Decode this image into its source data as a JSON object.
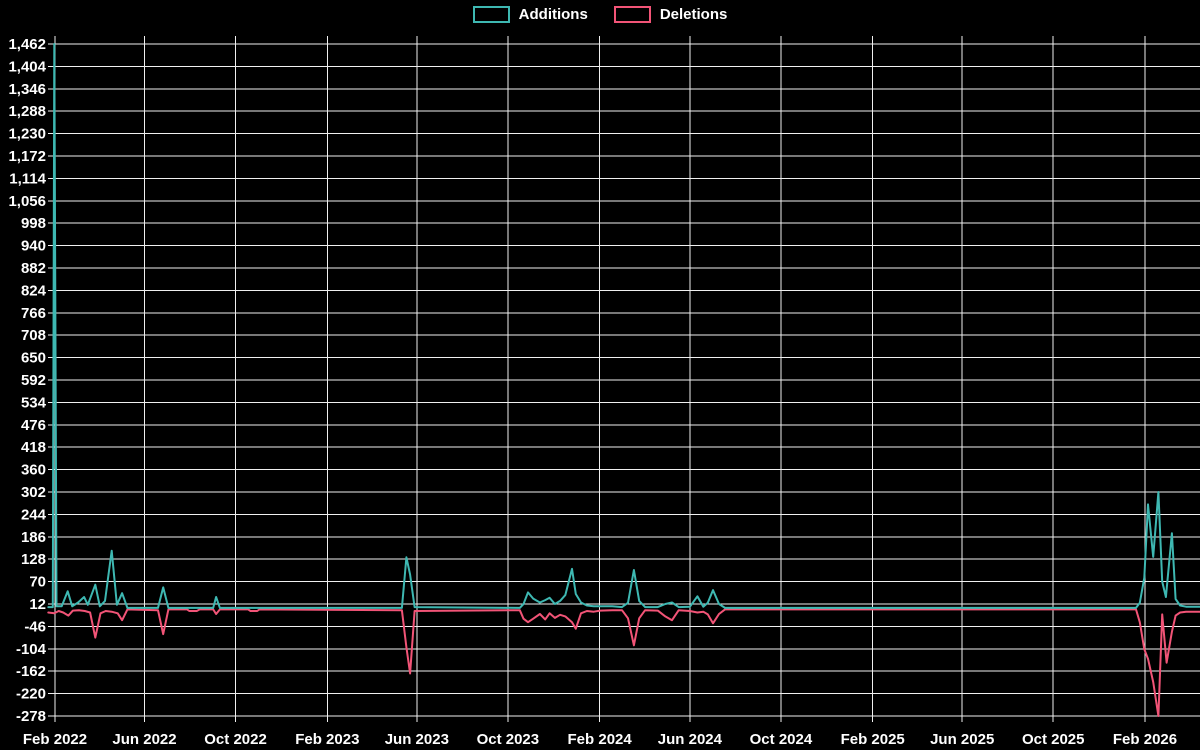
{
  "chart_data": {
    "type": "line",
    "title": "",
    "xlabel": "",
    "ylabel": "",
    "grid": true,
    "background_color": "#000000",
    "gridline_color": "#f0f0f0",
    "text_color": "#ffffff",
    "legend_position": "top-center",
    "x_ticks": [
      {
        "label": "Feb 2022",
        "date": "2022-02-01"
      },
      {
        "label": "Jun 2022",
        "date": "2022-06-01"
      },
      {
        "label": "Oct 2022",
        "date": "2022-10-01"
      },
      {
        "label": "Feb 2023",
        "date": "2023-02-01"
      },
      {
        "label": "Jun 2023",
        "date": "2023-06-01"
      },
      {
        "label": "Oct 2023",
        "date": "2023-10-01"
      },
      {
        "label": "Feb 2024",
        "date": "2024-02-01"
      },
      {
        "label": "Jun 2024",
        "date": "2024-06-01"
      },
      {
        "label": "Oct 2024",
        "date": "2024-10-01"
      },
      {
        "label": "Feb 2025",
        "date": "2025-02-01"
      },
      {
        "label": "Jun 2025",
        "date": "2025-06-01"
      },
      {
        "label": "Oct 2025",
        "date": "2025-10-01"
      },
      {
        "label": "Feb 2026",
        "date": "2026-02-01"
      }
    ],
    "y_ticks": [
      {
        "value": 1462,
        "label": "1,462"
      },
      {
        "value": 1404,
        "label": "1,404"
      },
      {
        "value": 1346,
        "label": "1,346"
      },
      {
        "value": 1288,
        "label": "1,288"
      },
      {
        "value": 1230,
        "label": "1,230"
      },
      {
        "value": 1172,
        "label": "1,172"
      },
      {
        "value": 1114,
        "label": "1,114"
      },
      {
        "value": 1056,
        "label": "1,056"
      },
      {
        "value": 998,
        "label": "998"
      },
      {
        "value": 940,
        "label": "940"
      },
      {
        "value": 882,
        "label": "882"
      },
      {
        "value": 824,
        "label": "824"
      },
      {
        "value": 766,
        "label": "766"
      },
      {
        "value": 708,
        "label": "708"
      },
      {
        "value": 650,
        "label": "650"
      },
      {
        "value": 592,
        "label": "592"
      },
      {
        "value": 534,
        "label": "534"
      },
      {
        "value": 476,
        "label": "476"
      },
      {
        "value": 418,
        "label": "418"
      },
      {
        "value": 360,
        "label": "360"
      },
      {
        "value": 302,
        "label": "302"
      },
      {
        "value": 244,
        "label": "244"
      },
      {
        "value": 186,
        "label": "186"
      },
      {
        "value": 128,
        "label": "128"
      },
      {
        "value": 70,
        "label": "70"
      },
      {
        "value": 12,
        "label": "12"
      },
      {
        "value": -46,
        "label": "-46"
      },
      {
        "value": -104,
        "label": "-104"
      },
      {
        "value": -162,
        "label": "-162"
      },
      {
        "value": -220,
        "label": "-220"
      },
      {
        "value": -278,
        "label": "-278"
      }
    ],
    "ylim": [
      -278,
      1462
    ],
    "x_range": {
      "start": "2022-01-23",
      "end": "2026-04-16"
    },
    "series": [
      {
        "name": "Additions",
        "color": "#3EB8B2",
        "points": [
          [
            "2022-01-23",
            4
          ],
          [
            "2022-01-29",
            4
          ],
          [
            "2022-01-31",
            1462
          ],
          [
            "2022-02-03",
            6
          ],
          [
            "2022-02-10",
            6
          ],
          [
            "2022-02-18",
            45
          ],
          [
            "2022-02-24",
            6
          ],
          [
            "2022-03-04",
            16
          ],
          [
            "2022-03-12",
            30
          ],
          [
            "2022-03-17",
            10
          ],
          [
            "2022-03-27",
            62
          ],
          [
            "2022-04-02",
            6
          ],
          [
            "2022-04-09",
            20
          ],
          [
            "2022-04-18",
            150
          ],
          [
            "2022-04-25",
            10
          ],
          [
            "2022-05-02",
            40
          ],
          [
            "2022-05-09",
            2
          ],
          [
            "2022-06-19",
            2
          ],
          [
            "2022-06-26",
            55
          ],
          [
            "2022-07-03",
            2
          ],
          [
            "2022-09-01",
            2
          ],
          [
            "2022-09-05",
            30
          ],
          [
            "2022-09-10",
            2
          ],
          [
            "2023-05-12",
            2
          ],
          [
            "2023-05-18",
            133
          ],
          [
            "2023-05-23",
            88
          ],
          [
            "2023-05-29",
            4
          ],
          [
            "2023-10-17",
            2
          ],
          [
            "2023-10-22",
            12
          ],
          [
            "2023-10-28",
            42
          ],
          [
            "2023-11-04",
            26
          ],
          [
            "2023-11-13",
            16
          ],
          [
            "2023-11-20",
            22
          ],
          [
            "2023-11-26",
            28
          ],
          [
            "2023-12-03",
            12
          ],
          [
            "2023-12-10",
            20
          ],
          [
            "2023-12-17",
            35
          ],
          [
            "2023-12-26",
            103
          ],
          [
            "2023-12-31",
            38
          ],
          [
            "2024-01-07",
            16
          ],
          [
            "2024-01-15",
            8
          ],
          [
            "2024-01-24",
            6
          ],
          [
            "2024-02-02",
            6
          ],
          [
            "2024-02-18",
            6
          ],
          [
            "2024-03-02",
            4
          ],
          [
            "2024-03-10",
            15
          ],
          [
            "2024-03-18",
            100
          ],
          [
            "2024-03-25",
            20
          ],
          [
            "2024-04-02",
            4
          ],
          [
            "2024-04-19",
            4
          ],
          [
            "2024-04-29",
            12
          ],
          [
            "2024-05-08",
            16
          ],
          [
            "2024-05-17",
            4
          ],
          [
            "2024-06-01",
            5
          ],
          [
            "2024-06-11",
            32
          ],
          [
            "2024-06-19",
            5
          ],
          [
            "2024-06-25",
            15
          ],
          [
            "2024-07-02",
            48
          ],
          [
            "2024-07-10",
            12
          ],
          [
            "2024-07-18",
            2
          ],
          [
            "2026-01-20",
            2
          ],
          [
            "2026-01-25",
            15
          ],
          [
            "2026-01-31",
            80
          ],
          [
            "2026-02-05",
            270
          ],
          [
            "2026-02-12",
            134
          ],
          [
            "2026-02-19",
            302
          ],
          [
            "2026-02-24",
            70
          ],
          [
            "2026-03-01",
            30
          ],
          [
            "2026-03-09",
            195
          ],
          [
            "2026-03-14",
            25
          ],
          [
            "2026-03-20",
            8
          ],
          [
            "2026-03-28",
            5
          ],
          [
            "2026-04-16",
            5
          ]
        ]
      },
      {
        "name": "Deletions",
        "color": "#F25477",
        "points": [
          [
            "2022-01-23",
            -10
          ],
          [
            "2022-01-31",
            -12
          ],
          [
            "2022-02-06",
            -6
          ],
          [
            "2022-02-12",
            -10
          ],
          [
            "2022-02-19",
            -18
          ],
          [
            "2022-02-25",
            -5
          ],
          [
            "2022-03-05",
            -4
          ],
          [
            "2022-03-13",
            -6
          ],
          [
            "2022-03-20",
            -10
          ],
          [
            "2022-03-27",
            -75
          ],
          [
            "2022-04-03",
            -12
          ],
          [
            "2022-04-10",
            -6
          ],
          [
            "2022-04-18",
            -8
          ],
          [
            "2022-04-26",
            -12
          ],
          [
            "2022-05-02",
            -30
          ],
          [
            "2022-05-09",
            -2
          ],
          [
            "2022-06-19",
            -4
          ],
          [
            "2022-06-26",
            -66
          ],
          [
            "2022-07-03",
            -2
          ],
          [
            "2022-07-28",
            -2
          ],
          [
            "2022-07-31",
            -6
          ],
          [
            "2022-08-10",
            -6
          ],
          [
            "2022-08-14",
            -2
          ],
          [
            "2022-09-01",
            -2
          ],
          [
            "2022-09-05",
            -14
          ],
          [
            "2022-09-10",
            -2
          ],
          [
            "2022-10-18",
            -2
          ],
          [
            "2022-10-21",
            -6
          ],
          [
            "2022-10-30",
            -6
          ],
          [
            "2022-11-02",
            -2
          ],
          [
            "2023-05-12",
            -4
          ],
          [
            "2023-05-18",
            -100
          ],
          [
            "2023-05-23",
            -168
          ],
          [
            "2023-05-29",
            -6
          ],
          [
            "2023-10-17",
            -4
          ],
          [
            "2023-10-22",
            -26
          ],
          [
            "2023-10-28",
            -35
          ],
          [
            "2023-11-04",
            -26
          ],
          [
            "2023-11-13",
            -14
          ],
          [
            "2023-11-20",
            -28
          ],
          [
            "2023-11-26",
            -12
          ],
          [
            "2023-12-03",
            -24
          ],
          [
            "2023-12-10",
            -16
          ],
          [
            "2023-12-17",
            -20
          ],
          [
            "2023-12-26",
            -35
          ],
          [
            "2023-12-31",
            -52
          ],
          [
            "2024-01-07",
            -12
          ],
          [
            "2024-01-15",
            -6
          ],
          [
            "2024-01-24",
            -8
          ],
          [
            "2024-02-02",
            -5
          ],
          [
            "2024-02-18",
            -4
          ],
          [
            "2024-03-02",
            -4
          ],
          [
            "2024-03-10",
            -25
          ],
          [
            "2024-03-18",
            -95
          ],
          [
            "2024-03-25",
            -25
          ],
          [
            "2024-04-02",
            -4
          ],
          [
            "2024-04-19",
            -5
          ],
          [
            "2024-04-29",
            -20
          ],
          [
            "2024-05-08",
            -30
          ],
          [
            "2024-05-17",
            -4
          ],
          [
            "2024-06-01",
            -6
          ],
          [
            "2024-06-11",
            -10
          ],
          [
            "2024-06-19",
            -8
          ],
          [
            "2024-06-25",
            -15
          ],
          [
            "2024-07-02",
            -38
          ],
          [
            "2024-07-10",
            -14
          ],
          [
            "2024-07-18",
            -2
          ],
          [
            "2026-01-20",
            -2
          ],
          [
            "2026-01-25",
            -35
          ],
          [
            "2026-01-31",
            -105
          ],
          [
            "2026-02-05",
            -130
          ],
          [
            "2026-02-12",
            -190
          ],
          [
            "2026-02-19",
            -278
          ],
          [
            "2026-02-24",
            -15
          ],
          [
            "2026-03-02",
            -140
          ],
          [
            "2026-03-09",
            -60
          ],
          [
            "2026-03-14",
            -18
          ],
          [
            "2026-03-20",
            -10
          ],
          [
            "2026-03-28",
            -8
          ],
          [
            "2026-04-16",
            -8
          ]
        ]
      }
    ]
  }
}
